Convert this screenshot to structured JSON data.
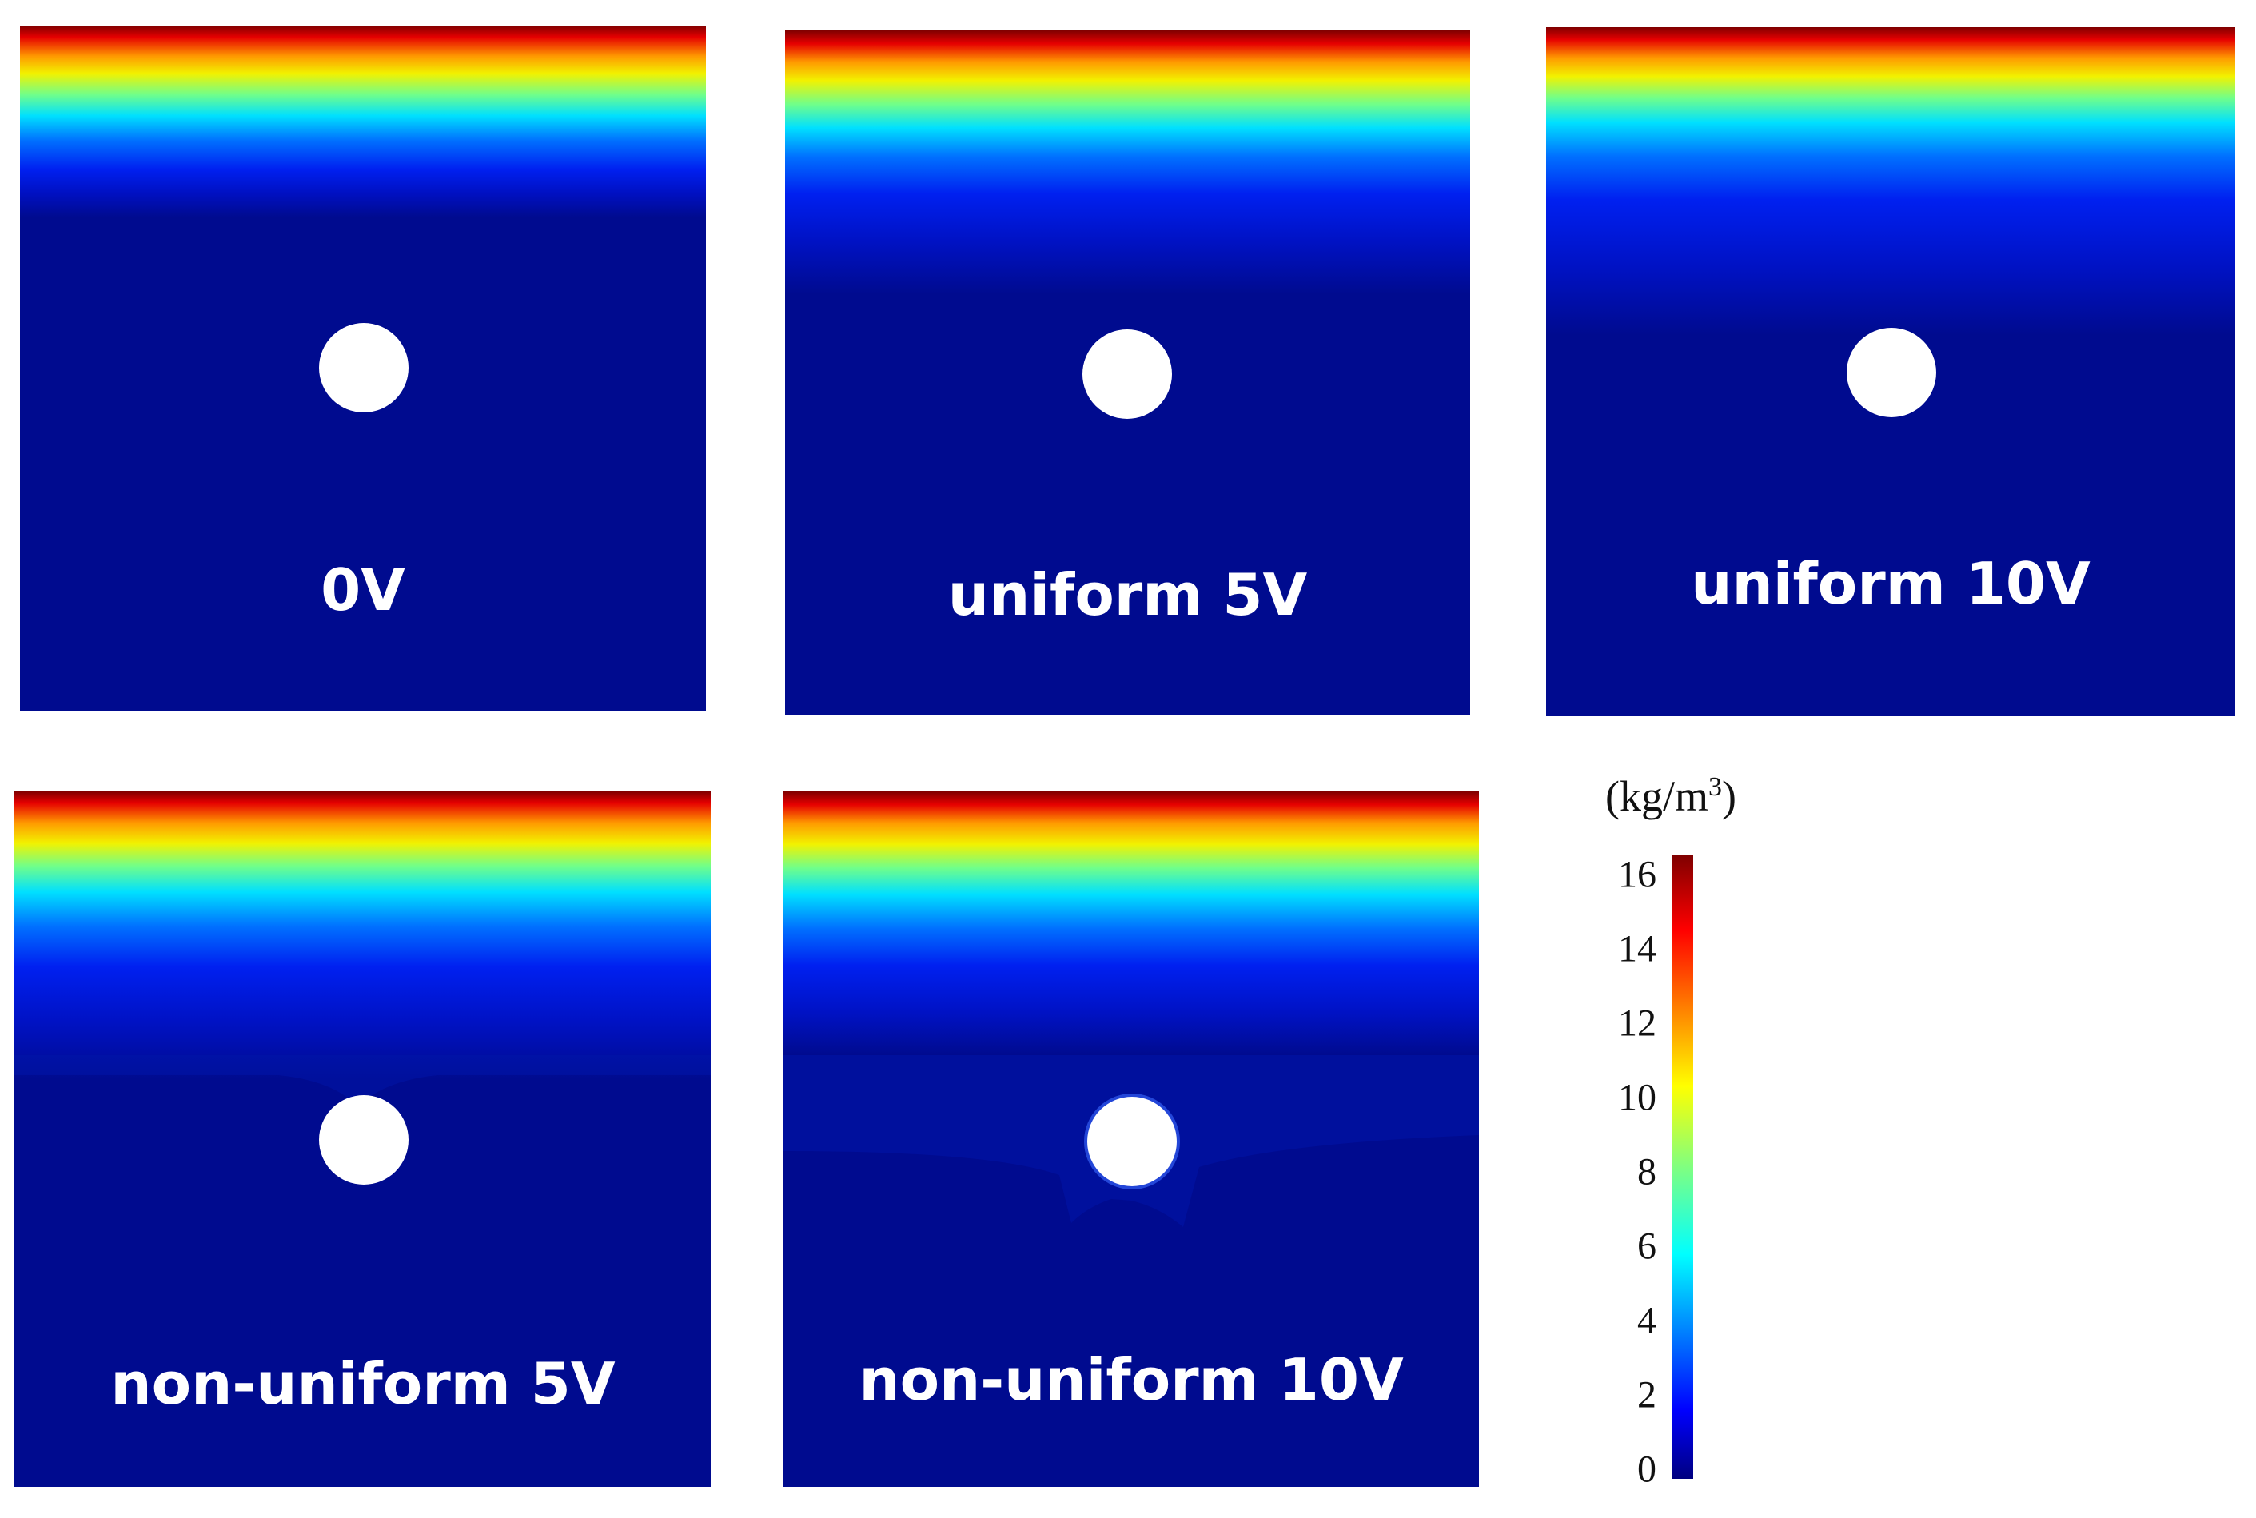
{
  "panels": [
    {
      "label": "0V"
    },
    {
      "label": "uniform 5V"
    },
    {
      "label": "uniform 10V"
    },
    {
      "label": "non-uniform 5V"
    },
    {
      "label": "non-uniform 10V"
    }
  ],
  "colorbar": {
    "unit_prefix": "(kg/m",
    "unit_sup": "3",
    "unit_suffix": ")",
    "ticks": [
      "0",
      "2",
      "4",
      "6",
      "8",
      "10",
      "12",
      "14",
      "16"
    ],
    "min": 0,
    "max": 16,
    "colormap": "jet"
  },
  "colors": {
    "field_background": "#000b8f",
    "cylinder": "#ffffff"
  }
}
